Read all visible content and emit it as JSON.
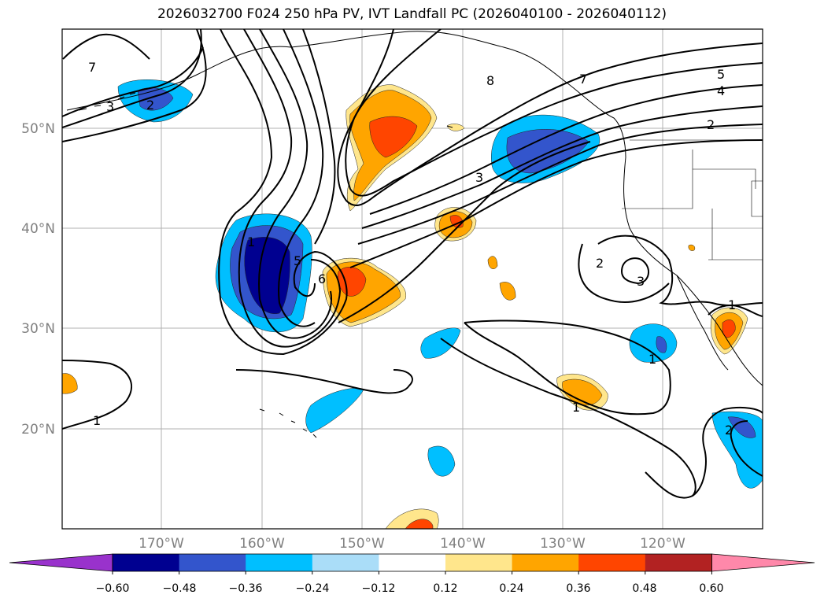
{
  "title": "2026032700 F024 250 hPa PV, IVT Landfall PC (2026040100 - 2026040112)",
  "map": {
    "lat_ticks": [
      "50°N",
      "40°N",
      "30°N",
      "20°N"
    ],
    "lon_ticks": [
      "170°W",
      "160°W",
      "150°W",
      "140°W",
      "130°W",
      "120°W"
    ],
    "grid": true,
    "contour_labels": [
      "7",
      "3",
      "2",
      "8",
      "7",
      "5",
      "4",
      "2",
      "3",
      "5",
      "6",
      "1",
      "2",
      "3",
      "1",
      "1",
      "1",
      "2",
      "1"
    ]
  },
  "colorbar": {
    "colors": [
      "#9932CC",
      "#000090",
      "#3355CC",
      "#00BFFF",
      "#AADDF8",
      "#FFFFFF",
      "#FFE68C",
      "#FFA500",
      "#FF4500",
      "#B22222",
      "#FF88AA"
    ],
    "labels": [
      "−0.60",
      "−0.48",
      "−0.36",
      "−0.24",
      "−0.12",
      "0.12",
      "0.24",
      "0.36",
      "0.48",
      "0.60"
    ],
    "extend": "both"
  }
}
